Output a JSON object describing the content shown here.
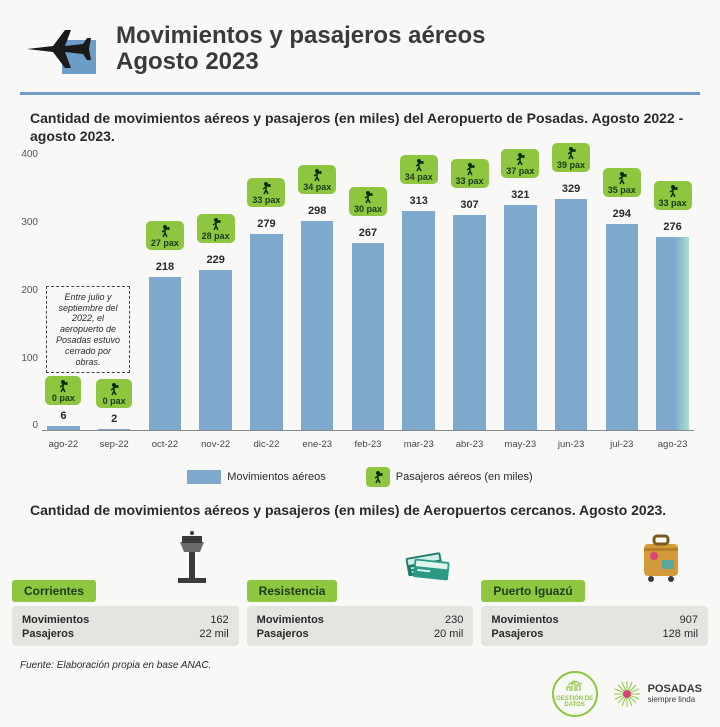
{
  "title_line1": "Movimientos y pasajeros aéreos",
  "title_line2": "Agosto 2023",
  "subtitle": "Cantidad de movimientos aéreos y pasajeros (en miles) del Aeropuerto de Posadas. Agosto 2022 - agosto 2023.",
  "chart": {
    "type": "bar",
    "ylim": [
      0,
      400
    ],
    "yticks": [
      0,
      100,
      200,
      300,
      400
    ],
    "bar_color": "#7ea8cc",
    "bar_color_highlight": "linear-gradient(180deg,#7ea8cc,#b9e6d9)",
    "pax_badge_color": "#8fc640",
    "note": "Entre julio y septiembre del 2022, el aeropuerto de Posadas estuvo cerrado por obras.",
    "series": [
      {
        "month": "ago-22",
        "movimientos": 6,
        "pax": 0,
        "pax_label": "0 pax",
        "closed": true
      },
      {
        "month": "sep-22",
        "movimientos": 2,
        "pax": 0,
        "pax_label": "0 pax",
        "closed": true
      },
      {
        "month": "oct-22",
        "movimientos": 218,
        "pax": 27,
        "pax_label": "27 pax"
      },
      {
        "month": "nov-22",
        "movimientos": 229,
        "pax": 28,
        "pax_label": "28 pax"
      },
      {
        "month": "dic-22",
        "movimientos": 279,
        "pax": 33,
        "pax_label": "33 pax"
      },
      {
        "month": "ene-23",
        "movimientos": 298,
        "pax": 34,
        "pax_label": "34 pax"
      },
      {
        "month": "feb-23",
        "movimientos": 267,
        "pax": 30,
        "pax_label": "30 pax"
      },
      {
        "month": "mar-23",
        "movimientos": 313,
        "pax": 34,
        "pax_label": "34 pax"
      },
      {
        "month": "abr-23",
        "movimientos": 307,
        "pax": 33,
        "pax_label": "33 pax"
      },
      {
        "month": "may-23",
        "movimientos": 321,
        "pax": 37,
        "pax_label": "37 pax"
      },
      {
        "month": "jun-23",
        "movimientos": 329,
        "pax": 39,
        "pax_label": "39 pax"
      },
      {
        "month": "jul-23",
        "movimientos": 294,
        "pax": 35,
        "pax_label": "35 pax"
      },
      {
        "month": "ago-23",
        "movimientos": 276,
        "pax": 33,
        "pax_label": "33 pax",
        "highlight": true
      }
    ],
    "legend": {
      "mov": "Movimientos aéreos",
      "pax": "Pasajeros aéreos (en miles)"
    }
  },
  "subtitle2": "Cantidad de movimientos aéreos y pasajeros (en miles) de Aeropuertos cercanos. Agosto 2023.",
  "airports": [
    {
      "name": "Corrientes",
      "mov_label": "Movimientos",
      "mov": "162",
      "pax_label": "Pasajeros",
      "pax": "22 mil",
      "icon": "tower"
    },
    {
      "name": "Resistencia",
      "mov_label": "Movimientos",
      "mov": "230",
      "pax_label": "Pasajeros",
      "pax": "20 mil",
      "icon": "tickets"
    },
    {
      "name": "Puerto Iguazú",
      "mov_label": "Movimientos",
      "mov": "907",
      "pax_label": "Pasajeros",
      "pax": "128 mil",
      "icon": "suitcase"
    }
  ],
  "source": "Fuente: Elaboración propia en base ANAC.",
  "footer": {
    "gestion": "GESTIÓN DE DATOS",
    "posadas_t": "POSADAS",
    "posadas_s": "siempre linda"
  },
  "colors": {
    "accent_blue": "#6b9dc8",
    "green": "#8fc640",
    "bg": "#f8f9f7",
    "card_bg": "#e4e4e0",
    "text": "#2a2a2a"
  }
}
